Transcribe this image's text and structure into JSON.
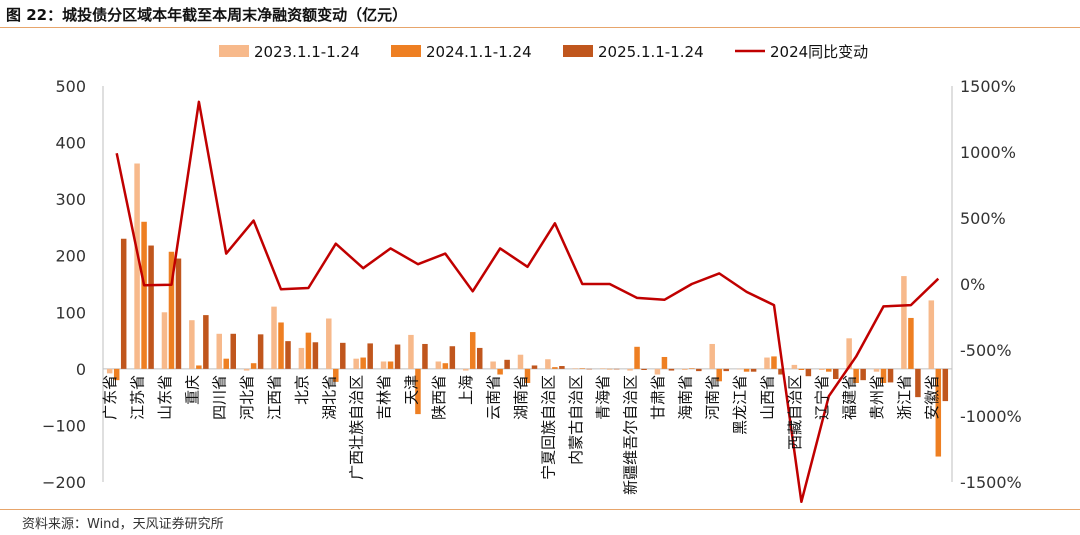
{
  "title": "图 22：城投债分区域本年截至本周末净融资额变动（亿元）",
  "source": "资料来源：Wind，天风证券研究所",
  "chart_data": {
    "type": "bar",
    "categories": [
      "广东省",
      "江苏省",
      "山东省",
      "重庆",
      "四川省",
      "河北省",
      "江西省",
      "北京",
      "湖北省",
      "广西壮族自治区",
      "吉林省",
      "天津",
      "陕西省",
      "上海",
      "云南省",
      "湖南省",
      "宁夏回族自治区",
      "内蒙古自治区",
      "青海省",
      "新疆维吾尔自治区",
      "甘肃省",
      "海南省",
      "河南省",
      "黑龙江省",
      "山西省",
      "西藏自治区",
      "辽宁省",
      "福建省",
      "贵州省",
      "浙江省",
      "安徽省"
    ],
    "series": [
      {
        "name": "2023.1.1-1.24",
        "type": "bar",
        "axis": "left",
        "color": "#f7b98b",
        "values": [
          -8,
          363,
          100,
          86,
          62,
          -3,
          110,
          37,
          89,
          18,
          13,
          60,
          13,
          -3,
          13,
          25,
          17,
          1,
          1,
          -3,
          -10,
          -2,
          44,
          0,
          20,
          7,
          -2,
          54,
          -5,
          164,
          121
        ]
      },
      {
        "name": "2024.1.1-1.24",
        "type": "bar",
        "axis": "left",
        "color": "#ee7f22",
        "values": [
          -20,
          260,
          207,
          6,
          18,
          10,
          82,
          64,
          -23,
          20,
          13,
          -80,
          10,
          65,
          -10,
          -25,
          3,
          1,
          0,
          39,
          21,
          1,
          -22,
          -5,
          22,
          -2,
          -5,
          -25,
          -25,
          90,
          -155
        ]
      },
      {
        "name": "2025.1.1-1.24",
        "type": "bar",
        "axis": "left",
        "color": "#c0561d",
        "values": [
          230,
          218,
          195,
          95,
          62,
          61,
          49,
          47,
          46,
          45,
          43,
          44,
          40,
          37,
          16,
          6,
          5,
          0,
          0,
          -2,
          -3,
          -4,
          -4,
          -5,
          -10,
          -13,
          -18,
          -20,
          -24,
          -50,
          -57
        ]
      },
      {
        "name": "2024同比变动",
        "type": "line",
        "axis": "right",
        "color": "#c00000",
        "values": [
          990,
          -10,
          -5,
          1380,
          230,
          480,
          -40,
          -30,
          305,
          120,
          270,
          150,
          230,
          -55,
          270,
          130,
          460,
          0,
          0,
          -105,
          -120,
          0,
          80,
          -60,
          -160,
          -1650,
          -850,
          -550,
          -170,
          -160,
          40
        ]
      }
    ],
    "ylim_left": [
      -200,
      500
    ],
    "yticks_left": [
      -200,
      -100,
      0,
      100,
      200,
      300,
      400,
      500
    ],
    "ytick_labels_left": [
      "−200",
      "−100",
      "0",
      "100",
      "200",
      "300",
      "400",
      "500"
    ],
    "ylim_right": [
      -1500,
      1500
    ],
    "yticks_right": [
      -1500,
      -1000,
      -500,
      0,
      500,
      1000,
      1500
    ],
    "ytick_labels_right": [
      "-1500%",
      "-1000%",
      "-500%",
      "0%",
      "500%",
      "1000%",
      "1500%"
    ],
    "legend": {
      "placement": "top-center"
    },
    "grid": false
  }
}
